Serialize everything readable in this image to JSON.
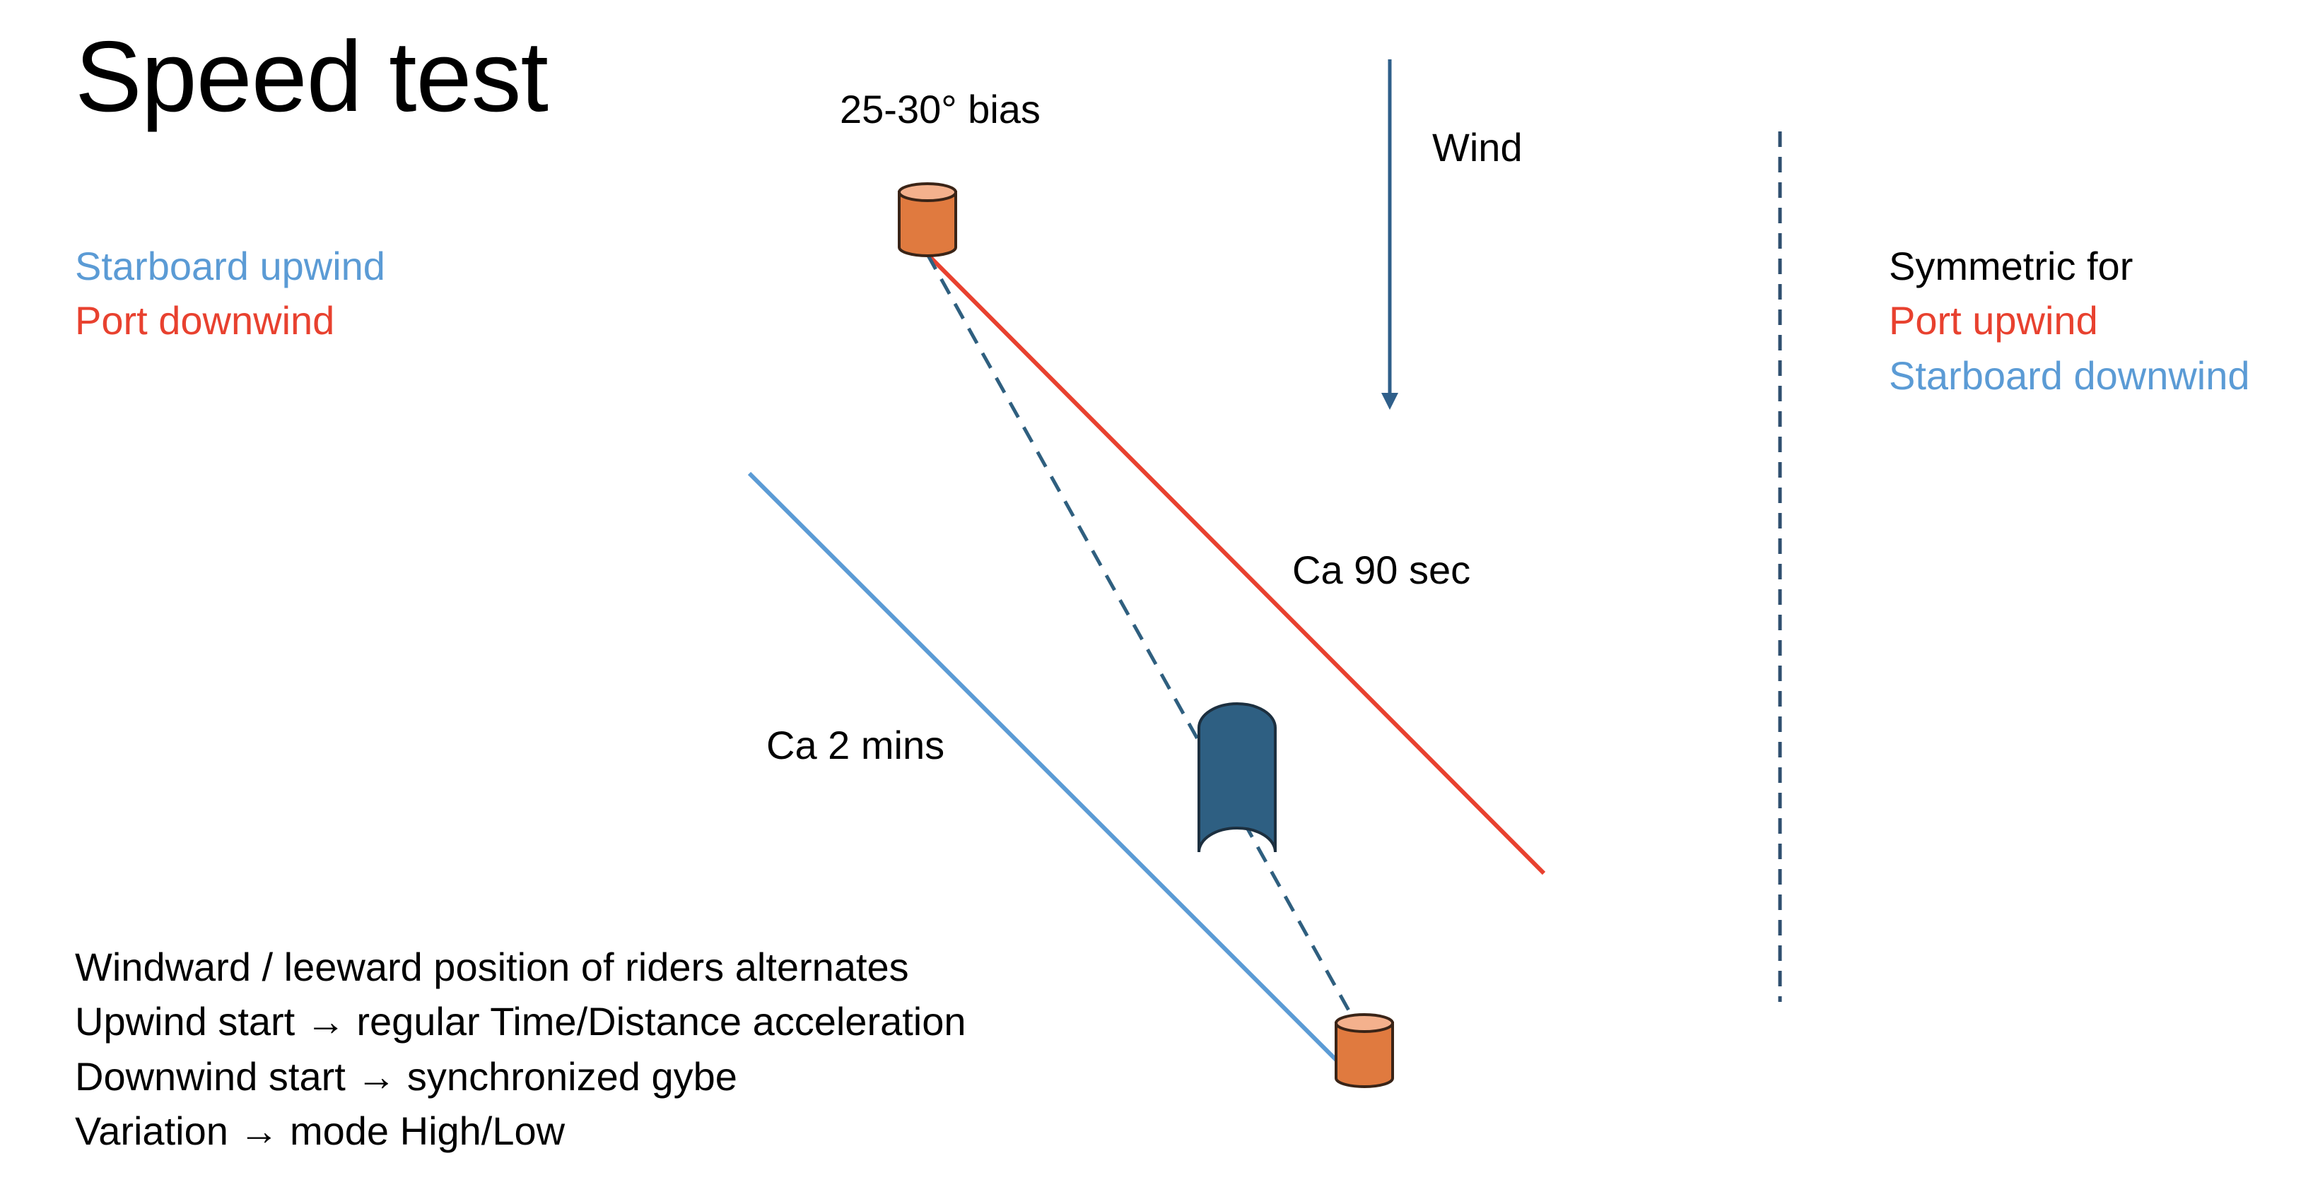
{
  "title": "Speed test",
  "labels": {
    "bias": "25-30° bias",
    "wind": "Wind",
    "ca_90": "Ca 90 sec",
    "ca_2": "Ca 2 mins"
  },
  "left_legend": {
    "line1": "Starboard upwind",
    "line2": "Port downwind"
  },
  "right_legend": {
    "line1": "Symmetric for",
    "line2": "Port upwind",
    "line3": "Starboard downwind"
  },
  "notes": [
    "Windward / leeward position of riders alternates",
    "Upwind start → regular Time/Distance acceleration",
    "Downwind start → synchronized gybe",
    "Variation → mode High/Low"
  ],
  "colors": {
    "starboard_blue": "#5B9BD5",
    "port_red": "#E8412F",
    "wind_arrow": "#2F5F8A",
    "buoy_orange": "#E07A3F",
    "buoy_top": "#F4B18D",
    "boat_blue": "#2E5F82",
    "divider": "#2F4F6F"
  }
}
